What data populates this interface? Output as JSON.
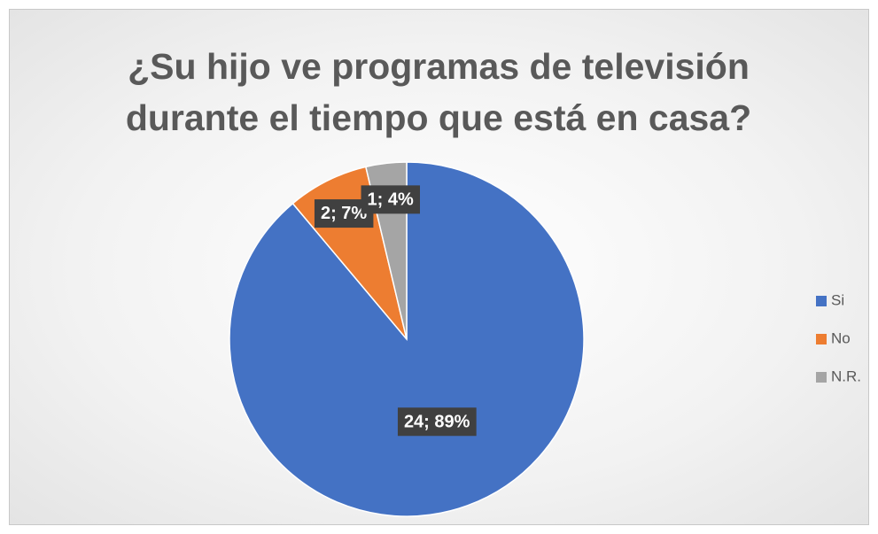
{
  "chart_data": {
    "type": "pie",
    "title": "¿Su hijo ve programas de televisión durante el tiempo que está en casa?",
    "categories": [
      "Si",
      "No",
      "N.R."
    ],
    "values": [
      24,
      2,
      1
    ],
    "value_labels": [
      "24; 89%",
      "2; 7%",
      "1; 4%"
    ],
    "colors": [
      "#4472c4",
      "#ed7d31",
      "#a5a5a5"
    ],
    "legend": "right"
  }
}
